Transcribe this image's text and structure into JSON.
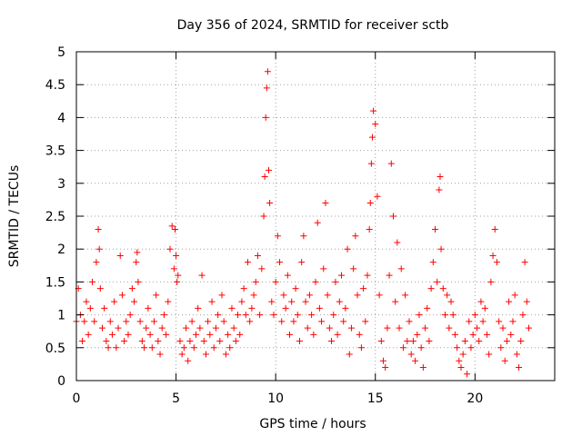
{
  "chart_data": {
    "type": "scatter",
    "title": "Day 356 of 2024, SRMTID for receiver sctb",
    "xlabel": "GPS time / hours",
    "ylabel": "SRMTID / TECUs",
    "xlim": [
      0,
      24
    ],
    "ylim": [
      0,
      5
    ],
    "xticks": [
      0,
      5,
      10,
      15,
      20
    ],
    "xtick_labels": [
      "0",
      "5",
      "10",
      "15",
      "20"
    ],
    "yticks": [
      0,
      0.5,
      1,
      1.5,
      2,
      2.5,
      3,
      3.5,
      4,
      4.5,
      5
    ],
    "ytick_labels": [
      "0",
      "0.5",
      "1",
      "1.5",
      "2",
      "2.5",
      "3",
      "3.5",
      "4",
      "4.5",
      "5"
    ],
    "grid": true,
    "marker": "+",
    "series": [
      {
        "name": "SRMTID",
        "color": "#ff0000",
        "x": [
          0.0,
          0.1,
          0.2,
          0.3,
          0.4,
          0.5,
          0.6,
          0.7,
          0.8,
          0.9,
          1.0,
          1.1,
          1.15,
          1.2,
          1.3,
          1.4,
          1.5,
          1.6,
          1.7,
          1.8,
          1.9,
          2.0,
          2.1,
          2.2,
          2.3,
          2.4,
          2.5,
          2.6,
          2.7,
          2.8,
          2.9,
          3.0,
          3.05,
          3.1,
          3.2,
          3.3,
          3.4,
          3.5,
          3.6,
          3.7,
          3.8,
          3.9,
          4.0,
          4.1,
          4.2,
          4.3,
          4.4,
          4.5,
          4.6,
          4.7,
          4.8,
          4.9,
          4.95,
          5.0,
          5.05,
          5.1,
          5.2,
          5.3,
          5.4,
          5.5,
          5.6,
          5.7,
          5.8,
          5.9,
          6.0,
          6.1,
          6.2,
          6.3,
          6.4,
          6.5,
          6.6,
          6.7,
          6.8,
          6.9,
          7.0,
          7.1,
          7.2,
          7.3,
          7.4,
          7.5,
          7.6,
          7.7,
          7.8,
          7.9,
          8.0,
          8.1,
          8.2,
          8.3,
          8.4,
          8.5,
          8.6,
          8.7,
          8.8,
          8.9,
          9.0,
          9.1,
          9.2,
          9.3,
          9.4,
          9.45,
          9.5,
          9.55,
          9.6,
          9.65,
          9.7,
          9.8,
          9.9,
          10.0,
          10.1,
          10.2,
          10.3,
          10.4,
          10.5,
          10.6,
          10.7,
          10.8,
          10.9,
          11.0,
          11.1,
          11.2,
          11.3,
          11.4,
          11.5,
          11.6,
          11.7,
          11.8,
          11.9,
          12.0,
          12.1,
          12.2,
          12.3,
          12.4,
          12.5,
          12.6,
          12.7,
          12.8,
          12.9,
          13.0,
          13.1,
          13.2,
          13.3,
          13.4,
          13.5,
          13.6,
          13.7,
          13.8,
          13.9,
          14.0,
          14.1,
          14.2,
          14.3,
          14.4,
          14.5,
          14.6,
          14.7,
          14.75,
          14.8,
          14.85,
          14.9,
          15.0,
          15.1,
          15.2,
          15.3,
          15.4,
          15.5,
          15.6,
          15.7,
          15.8,
          15.9,
          16.0,
          16.1,
          16.2,
          16.3,
          16.4,
          16.5,
          16.6,
          16.7,
          16.8,
          16.9,
          17.0,
          17.1,
          17.2,
          17.3,
          17.4,
          17.5,
          17.6,
          17.7,
          17.8,
          17.9,
          18.0,
          18.1,
          18.2,
          18.25,
          18.3,
          18.4,
          18.5,
          18.6,
          18.7,
          18.8,
          18.9,
          19.0,
          19.1,
          19.2,
          19.3,
          19.4,
          19.5,
          19.6,
          19.7,
          19.8,
          19.9,
          20.0,
          20.1,
          20.2,
          20.3,
          20.4,
          20.5,
          20.6,
          20.7,
          20.8,
          20.9,
          21.0,
          21.1,
          21.2,
          21.3,
          21.4,
          21.5,
          21.6,
          21.7,
          21.8,
          21.9,
          22.0,
          22.1,
          22.2,
          22.3,
          22.4,
          22.5,
          22.6,
          22.7
        ],
        "y": [
          0.9,
          1.4,
          1.0,
          0.6,
          0.9,
          1.2,
          0.7,
          1.1,
          1.5,
          0.9,
          1.8,
          2.3,
          2.0,
          1.4,
          0.8,
          1.1,
          0.6,
          0.5,
          0.9,
          0.7,
          1.2,
          0.5,
          0.8,
          1.9,
          1.3,
          0.6,
          0.9,
          0.7,
          1.0,
          1.4,
          1.2,
          1.8,
          1.95,
          1.5,
          0.9,
          0.6,
          0.5,
          0.8,
          1.1,
          0.7,
          0.5,
          0.9,
          1.3,
          0.6,
          0.4,
          0.8,
          1.0,
          0.7,
          1.2,
          2.0,
          2.35,
          1.7,
          2.3,
          1.9,
          1.5,
          1.6,
          0.6,
          0.4,
          0.5,
          0.8,
          0.3,
          0.6,
          0.9,
          0.5,
          0.7,
          1.1,
          0.8,
          1.6,
          0.6,
          0.4,
          0.9,
          0.7,
          1.2,
          0.5,
          0.8,
          1.0,
          0.6,
          1.3,
          0.9,
          0.4,
          0.7,
          0.5,
          1.1,
          0.8,
          0.6,
          1.0,
          0.7,
          1.2,
          1.4,
          1.0,
          1.8,
          0.9,
          1.1,
          1.3,
          1.5,
          1.9,
          1.0,
          1.7,
          2.5,
          3.1,
          4.0,
          4.45,
          4.7,
          3.2,
          2.7,
          1.2,
          1.0,
          1.5,
          2.2,
          1.8,
          0.9,
          1.3,
          1.1,
          1.6,
          0.7,
          1.2,
          0.9,
          1.4,
          1.0,
          0.6,
          1.8,
          2.2,
          1.2,
          0.8,
          1.3,
          1.0,
          0.7,
          1.5,
          2.4,
          1.1,
          0.9,
          1.7,
          2.7,
          1.3,
          0.8,
          0.6,
          1.0,
          1.5,
          0.7,
          1.2,
          1.6,
          0.9,
          1.1,
          2.0,
          0.4,
          0.8,
          1.7,
          2.2,
          1.3,
          0.7,
          0.5,
          1.4,
          0.9,
          1.6,
          2.3,
          2.7,
          3.3,
          3.7,
          4.1,
          3.9,
          2.8,
          1.3,
          0.6,
          0.3,
          0.2,
          0.8,
          1.6,
          3.3,
          2.5,
          1.2,
          2.1,
          0.8,
          1.7,
          0.5,
          1.3,
          0.6,
          0.9,
          0.4,
          0.6,
          0.3,
          0.7,
          1.0,
          0.5,
          0.2,
          0.8,
          1.1,
          0.6,
          1.4,
          1.8,
          2.3,
          1.5,
          2.9,
          3.1,
          2.0,
          1.4,
          1.0,
          1.3,
          0.8,
          1.2,
          1.0,
          0.7,
          0.5,
          0.3,
          0.2,
          0.4,
          0.6,
          0.1,
          0.9,
          0.5,
          0.7,
          1.0,
          0.8,
          0.6,
          1.2,
          0.9,
          1.1,
          0.7,
          0.4,
          1.5,
          1.9,
          2.3,
          1.8,
          0.9,
          0.5,
          0.8,
          0.3,
          0.6,
          1.2,
          0.7,
          0.9,
          1.3,
          0.4,
          0.2,
          0.6,
          1.0,
          1.8,
          1.2,
          0.8
        ]
      }
    ]
  }
}
